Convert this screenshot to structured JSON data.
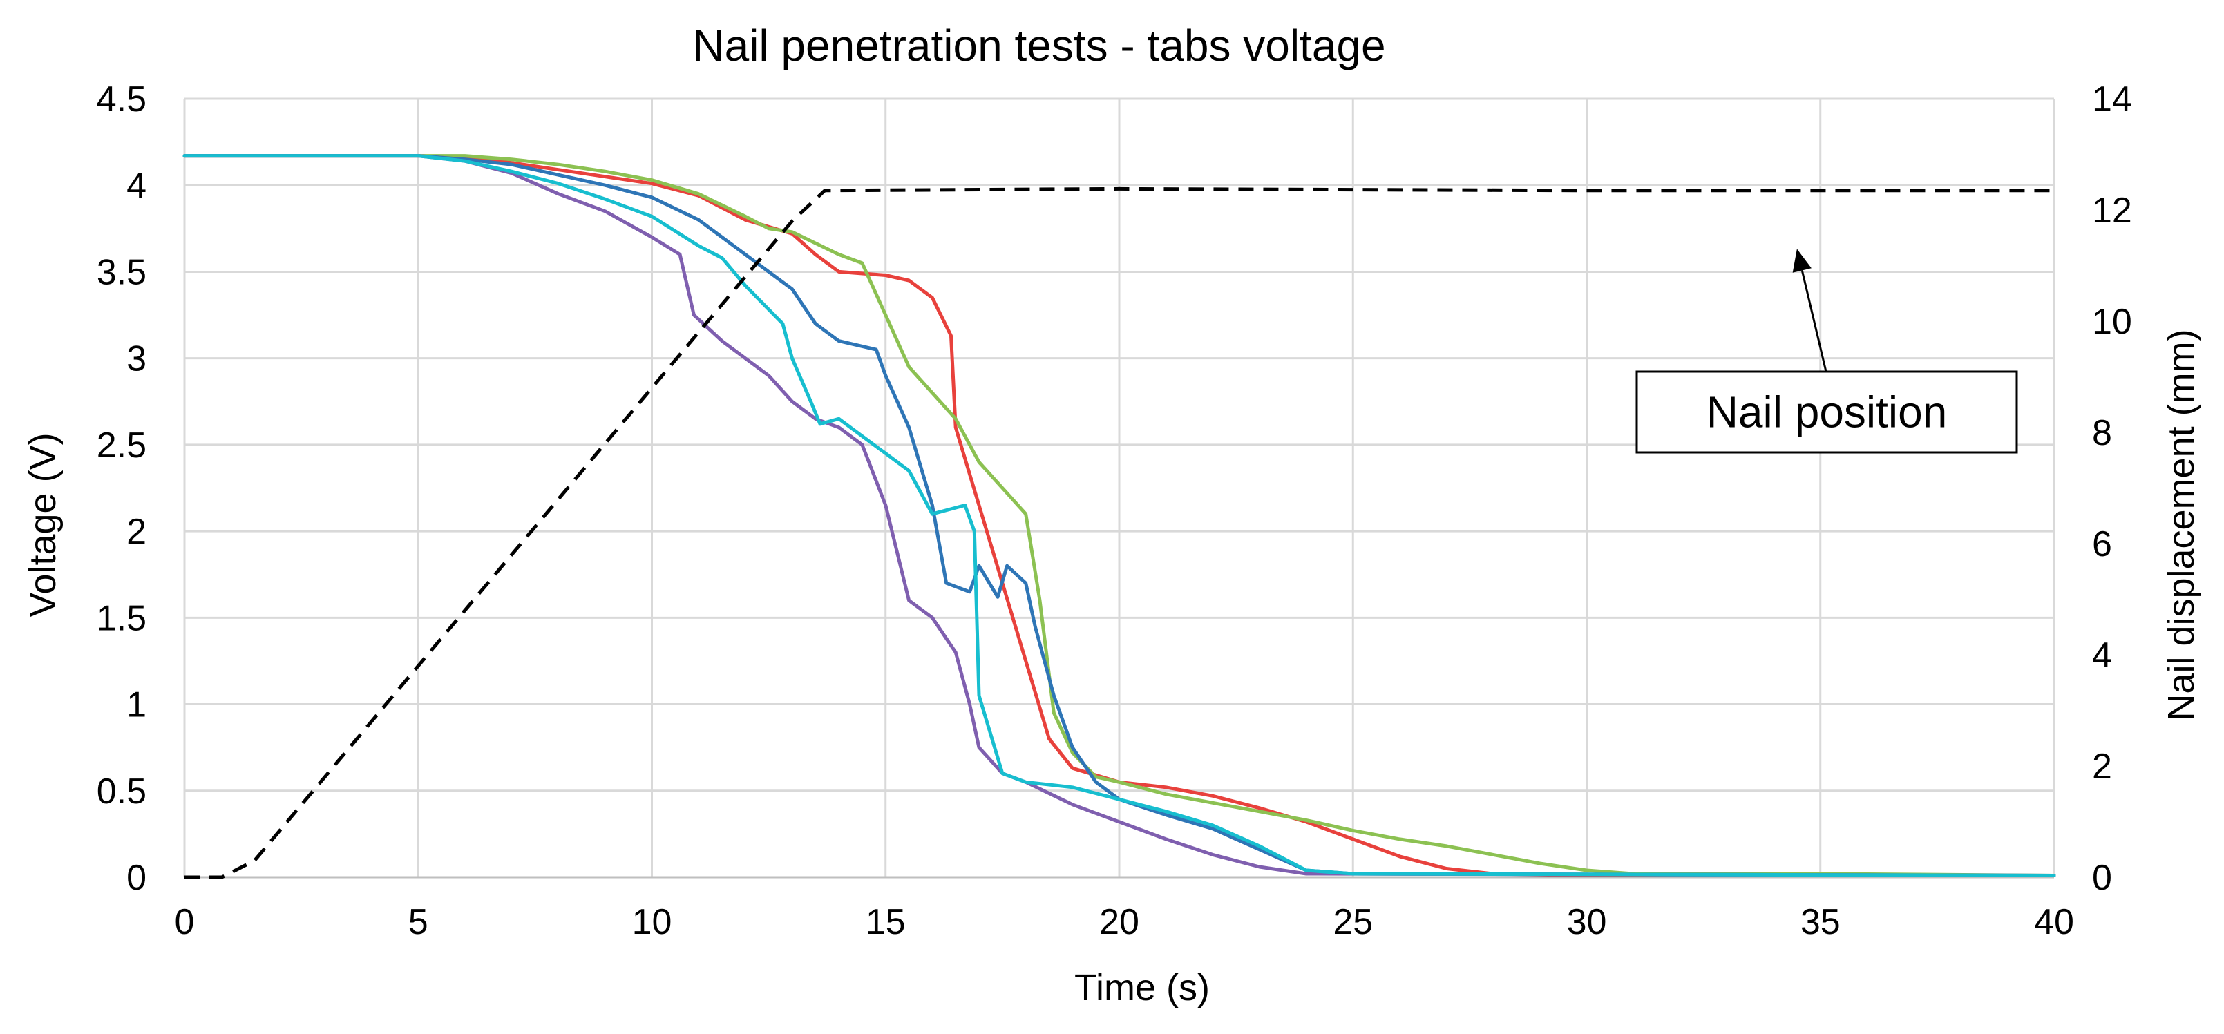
{
  "chart_data": {
    "type": "line",
    "title": "Nail penetration tests - tabs voltage",
    "xlabel": "Time (s)",
    "ylabel": "Voltage (V)",
    "y2label": "Nail displacement (mm)",
    "xlim": [
      0,
      40
    ],
    "ylim": [
      0,
      4.5
    ],
    "y2lim": [
      0,
      14
    ],
    "xticks": [
      0,
      5,
      10,
      15,
      20,
      25,
      30,
      35,
      40
    ],
    "yticks": [
      0,
      0.5,
      1,
      1.5,
      2,
      2.5,
      3,
      3.5,
      4,
      4.5
    ],
    "y2ticks": [
      0,
      2,
      4,
      6,
      8,
      10,
      12,
      14
    ],
    "grid": true,
    "annotation": {
      "text": "Nail position",
      "arrow_to": [
        34.5,
        11.3
      ]
    },
    "series": [
      {
        "name": "red",
        "color": "#e8413c",
        "axis": "left",
        "points": [
          [
            0,
            4.17
          ],
          [
            5,
            4.17
          ],
          [
            6,
            4.16
          ],
          [
            7,
            4.13
          ],
          [
            8,
            4.09
          ],
          [
            9,
            4.05
          ],
          [
            10,
            4.01
          ],
          [
            11,
            3.94
          ],
          [
            12,
            3.8
          ],
          [
            13,
            3.72
          ],
          [
            13.5,
            3.6
          ],
          [
            14,
            3.5
          ],
          [
            15,
            3.48
          ],
          [
            15.5,
            3.45
          ],
          [
            16,
            3.35
          ],
          [
            16.4,
            3.13
          ],
          [
            16.5,
            2.6
          ],
          [
            17,
            2.15
          ],
          [
            17.5,
            1.7
          ],
          [
            18,
            1.25
          ],
          [
            18.5,
            0.8
          ],
          [
            19,
            0.63
          ],
          [
            20,
            0.55
          ],
          [
            21,
            0.52
          ],
          [
            22,
            0.47
          ],
          [
            23,
            0.4
          ],
          [
            24,
            0.32
          ],
          [
            25,
            0.22
          ],
          [
            26,
            0.12
          ],
          [
            27,
            0.05
          ],
          [
            28,
            0.02
          ],
          [
            30,
            0.01
          ],
          [
            40,
            0.01
          ]
        ]
      },
      {
        "name": "green",
        "color": "#8cc152",
        "axis": "left",
        "points": [
          [
            0,
            4.17
          ],
          [
            5,
            4.17
          ],
          [
            6,
            4.17
          ],
          [
            7,
            4.15
          ],
          [
            8,
            4.12
          ],
          [
            9,
            4.08
          ],
          [
            10,
            4.03
          ],
          [
            11,
            3.95
          ],
          [
            12,
            3.82
          ],
          [
            12.5,
            3.75
          ],
          [
            13,
            3.73
          ],
          [
            14,
            3.6
          ],
          [
            14.5,
            3.55
          ],
          [
            15,
            3.25
          ],
          [
            15.5,
            2.95
          ],
          [
            16,
            2.8
          ],
          [
            16.5,
            2.65
          ],
          [
            17,
            2.4
          ],
          [
            17.5,
            2.25
          ],
          [
            18,
            2.1
          ],
          [
            18.3,
            1.6
          ],
          [
            18.6,
            0.95
          ],
          [
            19,
            0.72
          ],
          [
            19.5,
            0.58
          ],
          [
            20,
            0.55
          ],
          [
            21,
            0.48
          ],
          [
            22,
            0.43
          ],
          [
            23,
            0.38
          ],
          [
            24,
            0.33
          ],
          [
            25,
            0.27
          ],
          [
            26,
            0.22
          ],
          [
            27,
            0.18
          ],
          [
            28,
            0.13
          ],
          [
            29,
            0.08
          ],
          [
            30,
            0.04
          ],
          [
            31,
            0.02
          ],
          [
            35,
            0.02
          ],
          [
            40,
            0.01
          ]
        ]
      },
      {
        "name": "blue",
        "color": "#2e75b6",
        "axis": "left",
        "points": [
          [
            0,
            4.17
          ],
          [
            5,
            4.17
          ],
          [
            6,
            4.15
          ],
          [
            7,
            4.12
          ],
          [
            8,
            4.06
          ],
          [
            9,
            4
          ],
          [
            10,
            3.93
          ],
          [
            11,
            3.8
          ],
          [
            12,
            3.6
          ],
          [
            13,
            3.4
          ],
          [
            13.5,
            3.2
          ],
          [
            14,
            3.1
          ],
          [
            14.8,
            3.05
          ],
          [
            15,
            2.9
          ],
          [
            15.5,
            2.6
          ],
          [
            16,
            2.15
          ],
          [
            16.3,
            1.7
          ],
          [
            16.8,
            1.65
          ],
          [
            17,
            1.8
          ],
          [
            17.4,
            1.62
          ],
          [
            17.6,
            1.8
          ],
          [
            18,
            1.7
          ],
          [
            18.2,
            1.45
          ],
          [
            18.6,
            1.05
          ],
          [
            19,
            0.75
          ],
          [
            19.5,
            0.55
          ],
          [
            20,
            0.45
          ],
          [
            21,
            0.36
          ],
          [
            22,
            0.28
          ],
          [
            23,
            0.16
          ],
          [
            24,
            0.04
          ],
          [
            25,
            0.02
          ],
          [
            40,
            0.01
          ]
        ]
      },
      {
        "name": "purple",
        "color": "#7f5faf",
        "axis": "left",
        "points": [
          [
            0,
            4.17
          ],
          [
            5,
            4.17
          ],
          [
            6,
            4.14
          ],
          [
            7,
            4.07
          ],
          [
            8,
            3.95
          ],
          [
            9,
            3.85
          ],
          [
            10,
            3.7
          ],
          [
            10.6,
            3.6
          ],
          [
            10.9,
            3.25
          ],
          [
            11.5,
            3.1
          ],
          [
            12,
            3
          ],
          [
            12.5,
            2.9
          ],
          [
            13,
            2.75
          ],
          [
            13.5,
            2.65
          ],
          [
            14,
            2.6
          ],
          [
            14.5,
            2.5
          ],
          [
            15,
            2.15
          ],
          [
            15.5,
            1.6
          ],
          [
            16,
            1.5
          ],
          [
            16.5,
            1.3
          ],
          [
            16.8,
            1
          ],
          [
            17,
            0.75
          ],
          [
            17.5,
            0.6
          ],
          [
            18,
            0.55
          ],
          [
            19,
            0.42
          ],
          [
            20,
            0.32
          ],
          [
            21,
            0.22
          ],
          [
            22,
            0.13
          ],
          [
            23,
            0.06
          ],
          [
            24,
            0.02
          ],
          [
            40,
            0.01
          ]
        ]
      },
      {
        "name": "cyan",
        "color": "#17becf",
        "axis": "left",
        "points": [
          [
            0,
            4.17
          ],
          [
            5,
            4.17
          ],
          [
            6,
            4.14
          ],
          [
            7,
            4.08
          ],
          [
            8,
            4.01
          ],
          [
            9,
            3.92
          ],
          [
            10,
            3.82
          ],
          [
            11,
            3.65
          ],
          [
            11.5,
            3.58
          ],
          [
            12,
            3.42
          ],
          [
            12.8,
            3.2
          ],
          [
            13,
            3
          ],
          [
            13.4,
            2.75
          ],
          [
            13.6,
            2.62
          ],
          [
            14,
            2.65
          ],
          [
            14.5,
            2.55
          ],
          [
            15,
            2.45
          ],
          [
            15.5,
            2.35
          ],
          [
            16,
            2.1
          ],
          [
            16.7,
            2.15
          ],
          [
            16.9,
            2
          ],
          [
            17,
            1.05
          ],
          [
            17.5,
            0.6
          ],
          [
            18,
            0.55
          ],
          [
            19,
            0.52
          ],
          [
            20,
            0.45
          ],
          [
            21,
            0.38
          ],
          [
            22,
            0.3
          ],
          [
            23,
            0.18
          ],
          [
            24,
            0.04
          ],
          [
            25,
            0.02
          ],
          [
            40,
            0.01
          ]
        ]
      },
      {
        "name": "Nail position",
        "color": "#000000",
        "axis": "right",
        "dashed": true,
        "points": [
          [
            0,
            0
          ],
          [
            0.8,
            0
          ],
          [
            1.5,
            0.3
          ],
          [
            2.5,
            1.3
          ],
          [
            4,
            2.8
          ],
          [
            6,
            4.8
          ],
          [
            8,
            6.8
          ],
          [
            10,
            8.8
          ],
          [
            12,
            10.8
          ],
          [
            13,
            11.8
          ],
          [
            13.7,
            12.35
          ],
          [
            20,
            12.38
          ],
          [
            30,
            12.35
          ],
          [
            40,
            12.35
          ]
        ]
      }
    ]
  }
}
